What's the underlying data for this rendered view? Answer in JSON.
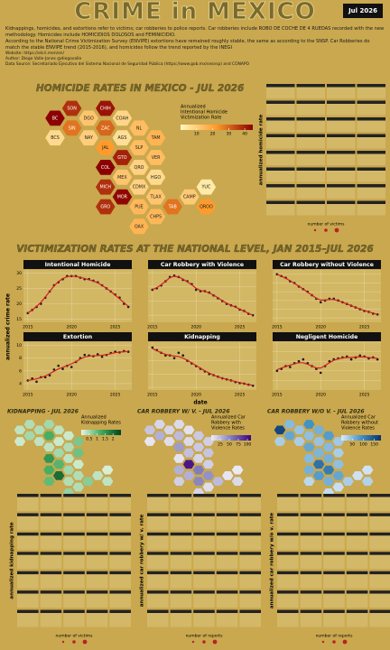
{
  "header": {
    "title": "CRIME in MEXICO",
    "badge": "Jul 2026",
    "lines": [
      "Kidnappings, homicides, and extortions refer to victims; car robberies to police reports. Car robberies include ROBO DE COCHE DE 4 RUEDAS recorded with the new methodology. Homicides include HOMICIDIOS DOLOSOS and FEMINICIDIO.",
      "According to the National Crime Victimization Survey (ENVIPE) extortions have remained roughly stable, the same as according to the SNSP. Car Robberies do match the stable ENVIPE trend (2015-2016), and homicides follow the trend reported by the INEGI"
    ],
    "website": "Website: https://elcri.men/en/",
    "author": "Author: Diego Valle-Jones @diegovalle",
    "source": "Data Source: Secretariado Ejecutivo del Sistema Nacional de Seguridad Pública (https://www.gob.mx/sesnsp) and CONAPO"
  },
  "homicide_map": {
    "title": "HOMICIDE RATES IN MEXICO - JUL 2026",
    "legend_title": [
      "Annualized",
      "Intentional Homicide",
      "Victimization Rate"
    ],
    "xlim": [
      0,
      45
    ],
    "xticks": [
      10,
      20,
      30,
      40
    ],
    "color_stops": [
      "#fff7bc",
      "#fe9929",
      "#8b0000"
    ],
    "states": [
      "BC",
      "SON",
      "CHIH",
      "COAH",
      "NL",
      "TAM",
      "BCS",
      "SIN",
      "DGO",
      "ZAC",
      "NAY",
      "JAL",
      "AGS",
      "SLP",
      "GTO",
      "QRO",
      "HGO",
      "VER",
      "COL",
      "MICH",
      "MEX",
      "CDMX",
      "TLAX",
      "PUE",
      "MOR",
      "GRO",
      "OAX",
      "CHPS",
      "TAB",
      "CAMP",
      "YUC",
      "QROO"
    ],
    "values": [
      45,
      38,
      42,
      8,
      14,
      16,
      7,
      28,
      12,
      30,
      10,
      22,
      6,
      14,
      40,
      9,
      7,
      14,
      55,
      38,
      12,
      9,
      12,
      15,
      44,
      38,
      16,
      15,
      28,
      11,
      3,
      22
    ],
    "small_multiples_ylabel": "annualized homicide rate",
    "size_label": "number of victims"
  },
  "section_title": "VICTIMIZATION RATES AT THE NATIONAL LEVEL, JAN 2015–JUL 2026",
  "ylabel": "annualized crime rate",
  "xlabel": "date",
  "chart_data": [
    {
      "type": "scatter",
      "title": "Intentional Homicide",
      "x": [
        2015,
        2015.5,
        2016,
        2016.5,
        2017,
        2017.5,
        2018,
        2018.5,
        2019,
        2019.5,
        2020,
        2020.5,
        2021,
        2021.5,
        2022,
        2022.5,
        2023,
        2023.5,
        2024,
        2024.5,
        2025,
        2025.5,
        2026,
        2026.5
      ],
      "values": [
        17,
        18,
        19,
        20,
        22,
        24,
        26,
        27,
        28,
        29,
        29,
        29,
        28.5,
        28,
        28,
        27.5,
        27,
        26,
        25,
        24,
        23,
        22,
        20,
        19
      ],
      "trend": [
        17,
        18,
        19.2,
        20.5,
        22.2,
        24,
        25.8,
        27.2,
        28.2,
        28.8,
        29,
        28.9,
        28.6,
        28.2,
        27.8,
        27.4,
        26.8,
        26,
        25,
        24,
        22.8,
        21.6,
        20.4,
        19.2
      ],
      "xlim": [
        2014.5,
        2026.9
      ],
      "xticks": [
        2015,
        2020,
        2025
      ],
      "ylim": [
        14,
        31
      ],
      "yticks": [
        15,
        20,
        25,
        30
      ]
    },
    {
      "type": "scatter",
      "title": "Car Robbery with Violence",
      "x": [
        2015,
        2015.5,
        2016,
        2016.5,
        2017,
        2017.5,
        2018,
        2018.5,
        2019,
        2019.5,
        2020,
        2020.5,
        2021,
        2021.5,
        2022,
        2022.5,
        2023,
        2023.5,
        2024,
        2024.5,
        2025,
        2025.5,
        2026,
        2026.5
      ],
      "values": [
        38,
        39,
        41,
        44,
        47,
        48,
        47,
        45,
        44,
        42,
        38,
        37,
        37,
        36,
        34,
        32,
        30,
        28,
        27,
        26,
        24,
        23,
        21,
        20
      ],
      "trend": [
        38,
        39.5,
        41.5,
        44,
        46.5,
        47.5,
        47,
        45.5,
        43.5,
        41.5,
        39,
        37.5,
        36.8,
        35.8,
        34.2,
        32.3,
        30.2,
        28.5,
        27,
        25.8,
        24.3,
        22.8,
        21.3,
        20
      ],
      "xlim": [
        2014.5,
        2026.9
      ],
      "xticks": [
        2015,
        2020,
        2025
      ],
      "ylim": [
        15,
        52
      ],
      "yticks": [
        20,
        30,
        40,
        50
      ]
    },
    {
      "type": "scatter",
      "title": "Car Robbery without Violence",
      "x": [
        2015,
        2015.5,
        2016,
        2016.5,
        2017,
        2017.5,
        2018,
        2018.5,
        2019,
        2019.5,
        2020,
        2020.5,
        2021,
        2021.5,
        2022,
        2022.5,
        2023,
        2023.5,
        2024,
        2024.5,
        2025,
        2025.5,
        2026,
        2026.5
      ],
      "values": [
        100,
        98,
        96,
        92,
        90,
        86,
        83,
        80,
        76,
        72,
        68,
        70,
        72,
        72,
        70,
        68,
        66,
        64,
        62,
        60,
        58,
        57,
        55,
        54
      ],
      "trend": [
        100,
        98,
        95.5,
        92.5,
        89.5,
        86.5,
        83,
        79.5,
        76,
        72.5,
        70.5,
        70.5,
        71,
        71,
        70,
        68,
        66,
        64,
        62,
        60.2,
        58.5,
        57,
        55.5,
        54
      ],
      "xlim": [
        2014.5,
        2026.9
      ],
      "xticks": [
        2015,
        2020,
        2025
      ],
      "ylim": [
        45,
        105
      ],
      "yticks": [
        50,
        60,
        70,
        80,
        90,
        100
      ]
    },
    {
      "type": "scatter",
      "title": "Extortion",
      "x": [
        2015,
        2015.5,
        2016,
        2016.5,
        2017,
        2017.5,
        2018,
        2018.5,
        2019,
        2019.5,
        2020,
        2020.5,
        2021,
        2021.5,
        2022,
        2022.5,
        2023,
        2023.5,
        2024,
        2024.5,
        2025,
        2025.5,
        2026,
        2026.5
      ],
      "values": [
        4.5,
        4.8,
        4.3,
        5,
        5,
        5.3,
        6.2,
        6.8,
        6.3,
        6.8,
        6.6,
        7.4,
        8,
        8.5,
        8.4,
        8.3,
        8.6,
        8.2,
        8.5,
        8.8,
        9,
        8.9,
        9.1,
        9
      ],
      "trend": [
        4.5,
        4.6,
        4.75,
        4.95,
        5.2,
        5.55,
        5.95,
        6.3,
        6.55,
        6.8,
        7.1,
        7.45,
        7.85,
        8.15,
        8.3,
        8.35,
        8.4,
        8.45,
        8.55,
        8.7,
        8.85,
        8.95,
        9,
        9.05
      ],
      "xlim": [
        2014.5,
        2026.9
      ],
      "xticks": [
        2015,
        2020,
        2025
      ],
      "ylim": [
        3,
        10.5
      ],
      "yticks": [
        4,
        6,
        8,
        10
      ]
    },
    {
      "type": "scatter",
      "title": "Kidnapping",
      "x": [
        2015,
        2015.5,
        2016,
        2016.5,
        2017,
        2017.5,
        2018,
        2018.5,
        2019,
        2019.5,
        2020,
        2020.5,
        2021,
        2021.5,
        2022,
        2022.5,
        2023,
        2023.5,
        2024,
        2024.5,
        2025,
        2025.5,
        2026,
        2026.5
      ],
      "values": [
        1.0,
        0.95,
        0.9,
        0.85,
        0.85,
        0.8,
        0.9,
        0.85,
        0.75,
        0.7,
        0.65,
        0.6,
        0.55,
        0.5,
        0.48,
        0.45,
        0.42,
        0.4,
        0.38,
        0.35,
        0.33,
        0.32,
        0.3,
        0.28
      ],
      "trend": [
        0.98,
        0.94,
        0.9,
        0.87,
        0.85,
        0.84,
        0.83,
        0.8,
        0.76,
        0.71,
        0.66,
        0.61,
        0.56,
        0.52,
        0.48,
        0.45,
        0.42,
        0.4,
        0.38,
        0.36,
        0.34,
        0.32,
        0.3,
        0.29
      ],
      "xlim": [
        2014.5,
        2026.9
      ],
      "xticks": [
        2015,
        2020,
        2025
      ],
      "ylim": [
        0.2,
        1.1
      ],
      "yticks": [
        0.25,
        0.5,
        0.75,
        1
      ]
    },
    {
      "type": "scatter",
      "title": "Negligent Homicide",
      "x": [
        2015,
        2015.5,
        2016,
        2016.5,
        2017,
        2017.5,
        2018,
        2018.5,
        2019,
        2019.5,
        2020,
        2020.5,
        2021,
        2021.5,
        2022,
        2022.5,
        2023,
        2023.5,
        2024,
        2024.5,
        2025,
        2025.5,
        2026,
        2026.5
      ],
      "values": [
        13,
        13.2,
        13.5,
        13.4,
        13.8,
        14,
        14.2,
        13.8,
        13.5,
        13.2,
        12.8,
        13.5,
        14,
        14.2,
        14.3,
        14.4,
        14.5,
        14.2,
        14.4,
        14.6,
        14.5,
        14.3,
        14.4,
        14.2
      ],
      "trend": [
        13.1,
        13.3,
        13.45,
        13.6,
        13.75,
        13.85,
        13.85,
        13.7,
        13.5,
        13.3,
        13.3,
        13.55,
        13.85,
        14.1,
        14.25,
        14.35,
        14.4,
        14.4,
        14.45,
        14.45,
        14.45,
        14.4,
        14.35,
        14.3
      ],
      "xlim": [
        2014.5,
        2026.9
      ],
      "xticks": [
        2015,
        2020,
        2025
      ],
      "ylim": [
        11,
        16
      ],
      "yticks": [
        12,
        13,
        14,
        15,
        16
      ]
    }
  ],
  "bottom_maps": [
    {
      "title": "KIDNAPPING - JUL 2026",
      "legend_title": [
        "Annualized",
        "Kidnapping Rates"
      ],
      "xlim": [
        0,
        2.5
      ],
      "xticks": [
        0.5,
        1,
        1.5,
        2
      ],
      "color_stops": [
        "#e5f5e0",
        "#41ab5d",
        "#00441b"
      ],
      "values": [
        0.3,
        0.4,
        0.5,
        0.3,
        0.2,
        0.8,
        0.2,
        0.5,
        0.4,
        1.2,
        0.3,
        0.3,
        0.2,
        0.4,
        0.5,
        0.3,
        0.2,
        0.9,
        1.5,
        1.2,
        1.1,
        0.5,
        0.4,
        0.4,
        2.0,
        1.0,
        0.6,
        0.4,
        0.7,
        0.3,
        0.1,
        0.3
      ],
      "small_multiples_ylabel": "annualized kidnapping rate",
      "size_label": "number of victims"
    },
    {
      "title": "CAR ROBBERY W/ V. - JUL 2026",
      "legend_title": [
        "Annualized Car",
        "Robbery with",
        "Violence Rates"
      ],
      "xlim": [
        0,
        110
      ],
      "xticks": [
        25,
        50,
        75,
        100
      ],
      "color_stops": [
        "#efedf5",
        "#807dba",
        "#3f007d"
      ],
      "values": [
        20,
        12,
        10,
        6,
        18,
        15,
        4,
        30,
        12,
        25,
        8,
        40,
        10,
        18,
        22,
        12,
        15,
        20,
        5,
        30,
        100,
        55,
        45,
        50,
        30,
        15,
        12,
        8,
        25,
        4,
        2,
        10
      ],
      "small_multiples_ylabel": "annualized car robbery w/ v. rate",
      "size_label": "number of reports"
    },
    {
      "title": "CAR ROBBERY W/O V. - JUL 2026",
      "legend_title": [
        "Annualized Car",
        "Robbery without",
        "Violence Rates"
      ],
      "xlim": [
        0,
        180
      ],
      "xticks": [
        50,
        100,
        150
      ],
      "color_stops": [
        "#deebf7",
        "#4292c6",
        "#08306b"
      ],
      "values": [
        160,
        50,
        90,
        60,
        80,
        35,
        30,
        70,
        40,
        45,
        30,
        70,
        40,
        50,
        55,
        60,
        45,
        30,
        50,
        60,
        120,
        110,
        70,
        60,
        80,
        20,
        15,
        12,
        30,
        10,
        8,
        25
      ],
      "small_multiples_ylabel": "annualized car robbery w/o v. rate",
      "size_label": "number of reports"
    }
  ]
}
